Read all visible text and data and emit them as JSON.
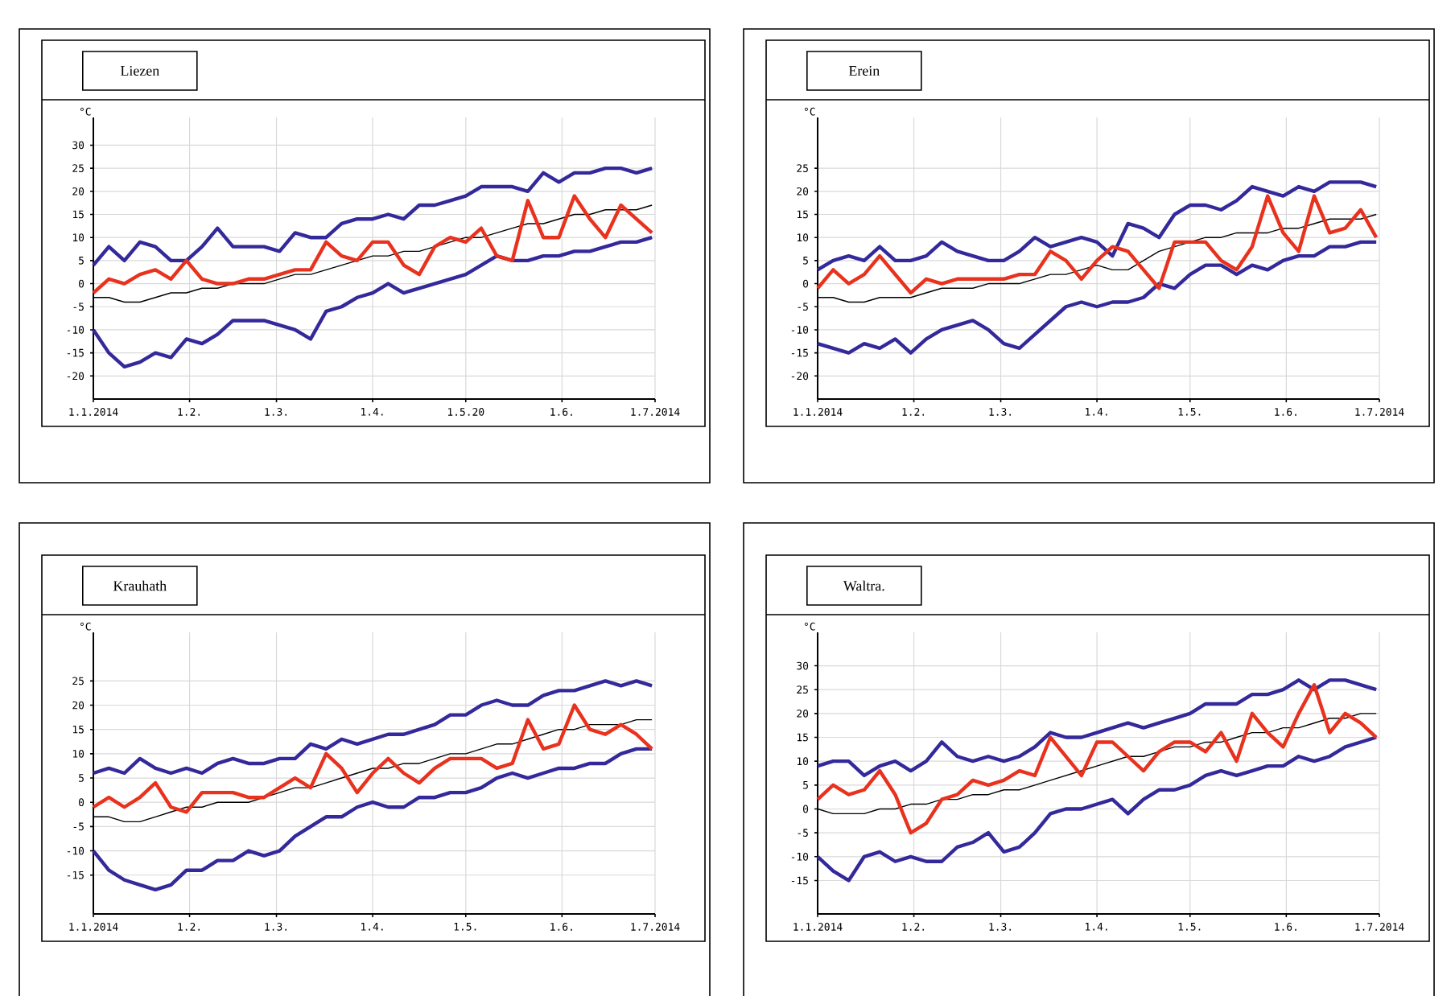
{
  "chart_data": [
    {
      "type": "line",
      "title": "Liezen",
      "ylabel": "°C",
      "grid": true,
      "xlim": [
        "2014-01-01",
        "2014-07-01"
      ],
      "ylim": [
        -25,
        36
      ],
      "xticks": [
        {
          "value": "2014-01-01",
          "label": "1.1.2014"
        },
        {
          "value": "2014-02-01",
          "label": "1.2."
        },
        {
          "value": "2014-03-01",
          "label": "1.3."
        },
        {
          "value": "2014-04-01",
          "label": "1.4."
        },
        {
          "value": "2014-05-01",
          "label": "1.5.20"
        },
        {
          "value": "2014-06-01",
          "label": "1.6."
        },
        {
          "value": "2014-07-01",
          "label": "1.7.2014"
        }
      ],
      "yticks": [
        -20,
        -15,
        -10,
        -5,
        0,
        5,
        10,
        15,
        20,
        25,
        30
      ],
      "x": [
        "2014-01-01",
        "2014-01-06",
        "2014-01-11",
        "2014-01-16",
        "2014-01-21",
        "2014-01-26",
        "2014-01-31",
        "2014-02-05",
        "2014-02-10",
        "2014-02-15",
        "2014-02-20",
        "2014-02-25",
        "2014-03-02",
        "2014-03-07",
        "2014-03-12",
        "2014-03-17",
        "2014-03-22",
        "2014-03-27",
        "2014-04-01",
        "2014-04-06",
        "2014-04-11",
        "2014-04-16",
        "2014-04-21",
        "2014-04-26",
        "2014-05-01",
        "2014-05-06",
        "2014-05-11",
        "2014-05-16",
        "2014-05-21",
        "2014-05-26",
        "2014-05-31",
        "2014-06-05",
        "2014-06-10",
        "2014-06-15",
        "2014-06-20",
        "2014-06-25",
        "2014-06-30"
      ],
      "series": [
        {
          "color": "#000000",
          "values": [
            -3,
            -3,
            -4,
            -4,
            -3,
            -2,
            -2,
            -1,
            -1,
            0,
            0,
            0,
            1,
            2,
            2,
            3,
            4,
            5,
            6,
            6,
            7,
            7,
            8,
            9,
            10,
            10,
            11,
            12,
            13,
            13,
            14,
            15,
            15,
            16,
            16,
            16,
            17
          ]
        },
        {
          "color": "#33299a",
          "values": [
            4,
            8,
            5,
            9,
            8,
            5,
            5,
            8,
            12,
            8,
            8,
            8,
            7,
            11,
            10,
            10,
            13,
            14,
            14,
            15,
            14,
            17,
            17,
            18,
            19,
            21,
            21,
            21,
            20,
            24,
            22,
            24,
            24,
            25,
            25,
            24,
            25
          ]
        },
        {
          "color": "#33299a",
          "values": [
            -10,
            -15,
            -18,
            -17,
            -15,
            -16,
            -12,
            -13,
            -11,
            -8,
            -8,
            -8,
            -9,
            -10,
            -12,
            -6,
            -5,
            -3,
            -2,
            0,
            -2,
            -1,
            0,
            1,
            2,
            4,
            6,
            5,
            5,
            6,
            6,
            7,
            7,
            8,
            9,
            9,
            10
          ]
        },
        {
          "color": "#e8321e",
          "values": [
            -2,
            1,
            0,
            2,
            3,
            1,
            5,
            1,
            0,
            0,
            1,
            1,
            2,
            3,
            3,
            9,
            6,
            5,
            9,
            9,
            4,
            2,
            8,
            10,
            9,
            12,
            6,
            5,
            18,
            10,
            10,
            19,
            14,
            10,
            17,
            14,
            11
          ]
        }
      ]
    },
    {
      "type": "line",
      "title": "Erein",
      "ylabel": "°C",
      "grid": true,
      "xlim": [
        "2014-01-01",
        "2014-07-01"
      ],
      "ylim": [
        -25,
        36
      ],
      "xticks": [
        {
          "value": "2014-01-01",
          "label": "1.1.2014"
        },
        {
          "value": "2014-02-01",
          "label": "1.2."
        },
        {
          "value": "2014-03-01",
          "label": "1.3."
        },
        {
          "value": "2014-04-01",
          "label": "1.4."
        },
        {
          "value": "2014-05-01",
          "label": "1.5."
        },
        {
          "value": "2014-06-01",
          "label": "1.6."
        },
        {
          "value": "2014-07-01",
          "label": "1.7.2014"
        }
      ],
      "yticks": [
        -20,
        -15,
        -10,
        -5,
        0,
        5,
        10,
        15,
        20,
        25
      ],
      "x": [
        "2014-01-01",
        "2014-01-06",
        "2014-01-11",
        "2014-01-16",
        "2014-01-21",
        "2014-01-26",
        "2014-01-31",
        "2014-02-05",
        "2014-02-10",
        "2014-02-15",
        "2014-02-20",
        "2014-02-25",
        "2014-03-02",
        "2014-03-07",
        "2014-03-12",
        "2014-03-17",
        "2014-03-22",
        "2014-03-27",
        "2014-04-01",
        "2014-04-06",
        "2014-04-11",
        "2014-04-16",
        "2014-04-21",
        "2014-04-26",
        "2014-05-01",
        "2014-05-06",
        "2014-05-11",
        "2014-05-16",
        "2014-05-21",
        "2014-05-26",
        "2014-05-31",
        "2014-06-05",
        "2014-06-10",
        "2014-06-15",
        "2014-06-20",
        "2014-06-25",
        "2014-06-30"
      ],
      "series": [
        {
          "color": "#000000",
          "values": [
            -3,
            -3,
            -4,
            -4,
            -3,
            -3,
            -3,
            -2,
            -1,
            -1,
            -1,
            0,
            0,
            0,
            1,
            2,
            2,
            3,
            4,
            3,
            3,
            5,
            7,
            8,
            9,
            10,
            10,
            11,
            11,
            11,
            12,
            12,
            13,
            14,
            14,
            14,
            15
          ]
        },
        {
          "color": "#33299a",
          "values": [
            3,
            5,
            6,
            5,
            8,
            5,
            5,
            6,
            9,
            7,
            6,
            5,
            5,
            7,
            10,
            8,
            9,
            10,
            9,
            6,
            13,
            12,
            10,
            15,
            17,
            17,
            16,
            18,
            21,
            20,
            19,
            21,
            20,
            22,
            22,
            22,
            21
          ]
        },
        {
          "color": "#33299a",
          "values": [
            -13,
            -14,
            -15,
            -13,
            -14,
            -12,
            -15,
            -12,
            -10,
            -9,
            -8,
            -10,
            -13,
            -14,
            -11,
            -8,
            -5,
            -4,
            -5,
            -4,
            -4,
            -3,
            0,
            -1,
            2,
            4,
            4,
            2,
            4,
            3,
            5,
            6,
            6,
            8,
            8,
            9,
            9
          ]
        },
        {
          "color": "#e8321e",
          "values": [
            -1,
            3,
            0,
            2,
            6,
            2,
            -2,
            1,
            0,
            1,
            1,
            1,
            1,
            2,
            2,
            7,
            5,
            1,
            5,
            8,
            7,
            3,
            -1,
            9,
            9,
            9,
            5,
            3,
            8,
            19,
            11,
            7,
            19,
            11,
            12,
            16,
            10
          ]
        }
      ]
    },
    {
      "type": "line",
      "title": "Krauhath",
      "ylabel": "°C",
      "grid": true,
      "xlim": [
        "2014-01-01",
        "2014-07-01"
      ],
      "ylim": [
        -23,
        35
      ],
      "xticks": [
        {
          "value": "2014-01-01",
          "label": "1.1.2014"
        },
        {
          "value": "2014-02-01",
          "label": "1.2."
        },
        {
          "value": "2014-03-01",
          "label": "1.3."
        },
        {
          "value": "2014-04-01",
          "label": "1.4."
        },
        {
          "value": "2014-05-01",
          "label": "1.5."
        },
        {
          "value": "2014-06-01",
          "label": "1.6."
        },
        {
          "value": "2014-07-01",
          "label": "1.7.2014"
        }
      ],
      "yticks": [
        -15,
        -10,
        -5,
        0,
        5,
        10,
        15,
        20,
        25
      ],
      "x": [
        "2014-01-01",
        "2014-01-06",
        "2014-01-11",
        "2014-01-16",
        "2014-01-21",
        "2014-01-26",
        "2014-01-31",
        "2014-02-05",
        "2014-02-10",
        "2014-02-15",
        "2014-02-20",
        "2014-02-25",
        "2014-03-02",
        "2014-03-07",
        "2014-03-12",
        "2014-03-17",
        "2014-03-22",
        "2014-03-27",
        "2014-04-01",
        "2014-04-06",
        "2014-04-11",
        "2014-04-16",
        "2014-04-21",
        "2014-04-26",
        "2014-05-01",
        "2014-05-06",
        "2014-05-11",
        "2014-05-16",
        "2014-05-21",
        "2014-05-26",
        "2014-05-31",
        "2014-06-05",
        "2014-06-10",
        "2014-06-15",
        "2014-06-20",
        "2014-06-25",
        "2014-06-30"
      ],
      "series": [
        {
          "color": "#000000",
          "values": [
            -3,
            -3,
            -4,
            -4,
            -3,
            -2,
            -1,
            -1,
            0,
            0,
            0,
            1,
            2,
            3,
            3,
            4,
            5,
            6,
            7,
            7,
            8,
            8,
            9,
            10,
            10,
            11,
            12,
            12,
            13,
            14,
            15,
            15,
            16,
            16,
            16,
            17,
            17
          ]
        },
        {
          "color": "#33299a",
          "values": [
            6,
            7,
            6,
            9,
            7,
            6,
            7,
            6,
            8,
            9,
            8,
            8,
            9,
            9,
            12,
            11,
            13,
            12,
            13,
            14,
            14,
            15,
            16,
            18,
            18,
            20,
            21,
            20,
            20,
            22,
            23,
            23,
            24,
            25,
            24,
            25,
            24
          ]
        },
        {
          "color": "#33299a",
          "values": [
            -10,
            -14,
            -16,
            -17,
            -18,
            -17,
            -14,
            -14,
            -12,
            -12,
            -10,
            -11,
            -10,
            -7,
            -5,
            -3,
            -3,
            -1,
            0,
            -1,
            -1,
            1,
            1,
            2,
            2,
            3,
            5,
            6,
            5,
            6,
            7,
            7,
            8,
            8,
            10,
            11,
            11
          ]
        },
        {
          "color": "#e8321e",
          "values": [
            -1,
            1,
            -1,
            1,
            4,
            -1,
            -2,
            2,
            2,
            2,
            1,
            1,
            3,
            5,
            3,
            10,
            7,
            2,
            6,
            9,
            6,
            4,
            7,
            9,
            9,
            9,
            7,
            8,
            17,
            11,
            12,
            20,
            15,
            14,
            16,
            14,
            11
          ]
        }
      ]
    },
    {
      "type": "line",
      "title": "Waltra.",
      "ylabel": "°C",
      "grid": true,
      "xlim": [
        "2014-01-01",
        "2014-07-01"
      ],
      "ylim": [
        -22,
        37
      ],
      "xticks": [
        {
          "value": "2014-01-01",
          "label": "1.1.2014"
        },
        {
          "value": "2014-02-01",
          "label": "1.2."
        },
        {
          "value": "2014-03-01",
          "label": "1.3."
        },
        {
          "value": "2014-04-01",
          "label": "1.4."
        },
        {
          "value": "2014-05-01",
          "label": "1.5."
        },
        {
          "value": "2014-06-01",
          "label": "1.6."
        },
        {
          "value": "2014-07-01",
          "label": "1.7.2014"
        }
      ],
      "yticks": [
        -15,
        -10,
        -5,
        0,
        5,
        10,
        15,
        20,
        25,
        30
      ],
      "x": [
        "2014-01-01",
        "2014-01-06",
        "2014-01-11",
        "2014-01-16",
        "2014-01-21",
        "2014-01-26",
        "2014-01-31",
        "2014-02-05",
        "2014-02-10",
        "2014-02-15",
        "2014-02-20",
        "2014-02-25",
        "2014-03-02",
        "2014-03-07",
        "2014-03-12",
        "2014-03-17",
        "2014-03-22",
        "2014-03-27",
        "2014-04-01",
        "2014-04-06",
        "2014-04-11",
        "2014-04-16",
        "2014-04-21",
        "2014-04-26",
        "2014-05-01",
        "2014-05-06",
        "2014-05-11",
        "2014-05-16",
        "2014-05-21",
        "2014-05-26",
        "2014-05-31",
        "2014-06-05",
        "2014-06-10",
        "2014-06-15",
        "2014-06-20",
        "2014-06-25",
        "2014-06-30"
      ],
      "series": [
        {
          "color": "#000000",
          "values": [
            0,
            -1,
            -1,
            -1,
            0,
            0,
            1,
            1,
            2,
            2,
            3,
            3,
            4,
            4,
            5,
            6,
            7,
            8,
            9,
            10,
            11,
            11,
            12,
            13,
            13,
            14,
            14,
            15,
            16,
            16,
            17,
            17,
            18,
            19,
            19,
            20,
            20
          ]
        },
        {
          "color": "#33299a",
          "values": [
            9,
            10,
            10,
            7,
            9,
            10,
            8,
            10,
            14,
            11,
            10,
            11,
            10,
            11,
            13,
            16,
            15,
            15,
            16,
            17,
            18,
            17,
            18,
            19,
            20,
            22,
            22,
            22,
            24,
            24,
            25,
            27,
            25,
            27,
            27,
            26,
            25
          ]
        },
        {
          "color": "#33299a",
          "values": [
            -10,
            -13,
            -15,
            -10,
            -9,
            -11,
            -10,
            -11,
            -11,
            -8,
            -7,
            -5,
            -9,
            -8,
            -5,
            -1,
            0,
            0,
            1,
            2,
            -1,
            2,
            4,
            4,
            5,
            7,
            8,
            7,
            8,
            9,
            9,
            11,
            10,
            11,
            13,
            14,
            15
          ]
        },
        {
          "color": "#e8321e",
          "values": [
            2,
            5,
            3,
            4,
            8,
            3,
            -5,
            -3,
            2,
            3,
            6,
            5,
            6,
            8,
            7,
            15,
            11,
            7,
            14,
            14,
            11,
            8,
            12,
            14,
            14,
            12,
            16,
            10,
            20,
            16,
            13,
            20,
            26,
            16,
            20,
            18,
            15
          ]
        }
      ]
    }
  ]
}
